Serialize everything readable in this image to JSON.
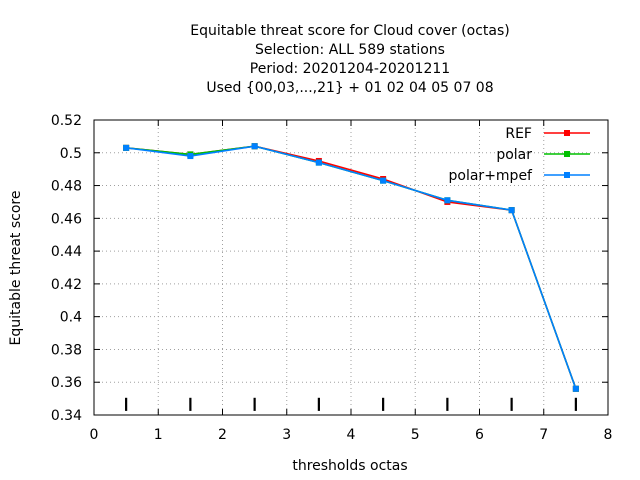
{
  "chart_data": {
    "type": "line",
    "title_lines": [
      "Equitable threat score  for Cloud cover (octas)",
      "Selection: ALL    589 stations",
      "Period: 20201204-20201211",
      "Used {00,03,...,21} + 01 02 04 05 07 08"
    ],
    "xlabel": "thresholds octas",
    "ylabel": "Equitable threat score",
    "xlim": [
      0,
      8
    ],
    "ylim": [
      0.34,
      0.52
    ],
    "xticks": [
      0,
      1,
      2,
      3,
      4,
      5,
      6,
      7,
      8
    ],
    "xtick_labels": [
      "0",
      "1",
      "2",
      "3",
      "4",
      "5",
      "6",
      "7",
      "8"
    ],
    "yticks": [
      0.34,
      0.36,
      0.38,
      0.4,
      0.42,
      0.44,
      0.46,
      0.48,
      0.5,
      0.52
    ],
    "ytick_labels": [
      "0.34",
      "0.36",
      "0.38",
      "0.4",
      "0.42",
      "0.44",
      "0.46",
      "0.48",
      "0.5",
      "0.52"
    ],
    "grid": true,
    "legend_position": "top-right",
    "x": [
      0.5,
      1.5,
      2.5,
      3.5,
      4.5,
      5.5,
      6.5,
      7.5
    ],
    "threshold_markers_x": [
      0.5,
      1.5,
      2.5,
      3.5,
      4.5,
      5.5,
      6.5,
      7.5
    ],
    "series": [
      {
        "name": "REF",
        "color": "#ff0000",
        "values": [
          0.503,
          0.499,
          0.504,
          0.495,
          0.484,
          0.47,
          0.465,
          0.356
        ]
      },
      {
        "name": "polar",
        "color": "#00c000",
        "values": [
          0.503,
          0.499,
          0.504,
          0.494,
          0.483,
          0.471,
          0.465,
          0.356
        ]
      },
      {
        "name": "polar+mpef",
        "color": "#0080ff",
        "values": [
          0.503,
          0.498,
          0.504,
          0.494,
          0.483,
          0.471,
          0.465,
          0.356
        ]
      }
    ]
  }
}
